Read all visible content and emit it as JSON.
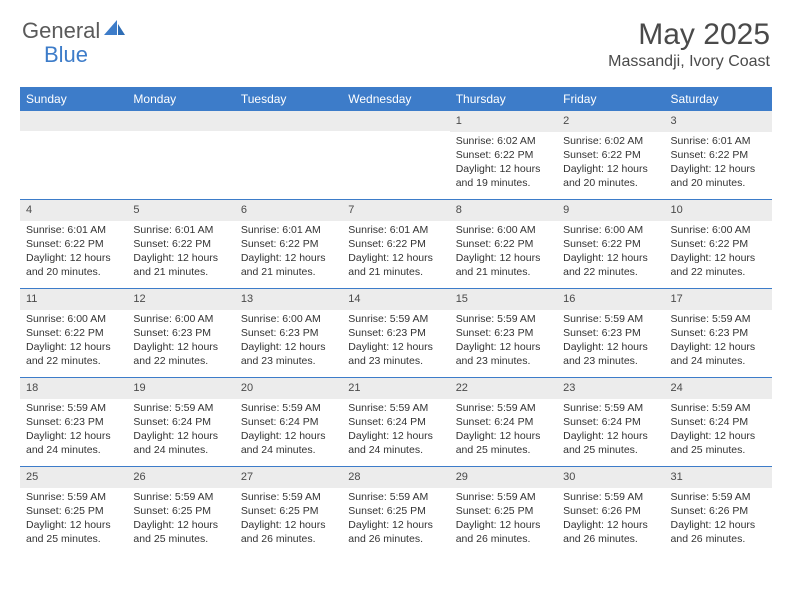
{
  "brand": {
    "part1": "General",
    "part2": "Blue"
  },
  "title": "May 2025",
  "location": "Massandji, Ivory Coast",
  "colors": {
    "accent": "#3d7cc9",
    "header_text": "#ffffff",
    "daynum_bg": "#ececec",
    "text": "#333333",
    "border": "#3d7cc9"
  },
  "dow": [
    "Sunday",
    "Monday",
    "Tuesday",
    "Wednesday",
    "Thursday",
    "Friday",
    "Saturday"
  ],
  "weeks": [
    [
      {
        "n": "",
        "lines": []
      },
      {
        "n": "",
        "lines": []
      },
      {
        "n": "",
        "lines": []
      },
      {
        "n": "",
        "lines": []
      },
      {
        "n": "1",
        "lines": [
          "Sunrise: 6:02 AM",
          "Sunset: 6:22 PM",
          "Daylight: 12 hours and 19 minutes."
        ]
      },
      {
        "n": "2",
        "lines": [
          "Sunrise: 6:02 AM",
          "Sunset: 6:22 PM",
          "Daylight: 12 hours and 20 minutes."
        ]
      },
      {
        "n": "3",
        "lines": [
          "Sunrise: 6:01 AM",
          "Sunset: 6:22 PM",
          "Daylight: 12 hours and 20 minutes."
        ]
      }
    ],
    [
      {
        "n": "4",
        "lines": [
          "Sunrise: 6:01 AM",
          "Sunset: 6:22 PM",
          "Daylight: 12 hours and 20 minutes."
        ]
      },
      {
        "n": "5",
        "lines": [
          "Sunrise: 6:01 AM",
          "Sunset: 6:22 PM",
          "Daylight: 12 hours and 21 minutes."
        ]
      },
      {
        "n": "6",
        "lines": [
          "Sunrise: 6:01 AM",
          "Sunset: 6:22 PM",
          "Daylight: 12 hours and 21 minutes."
        ]
      },
      {
        "n": "7",
        "lines": [
          "Sunrise: 6:01 AM",
          "Sunset: 6:22 PM",
          "Daylight: 12 hours and 21 minutes."
        ]
      },
      {
        "n": "8",
        "lines": [
          "Sunrise: 6:00 AM",
          "Sunset: 6:22 PM",
          "Daylight: 12 hours and 21 minutes."
        ]
      },
      {
        "n": "9",
        "lines": [
          "Sunrise: 6:00 AM",
          "Sunset: 6:22 PM",
          "Daylight: 12 hours and 22 minutes."
        ]
      },
      {
        "n": "10",
        "lines": [
          "Sunrise: 6:00 AM",
          "Sunset: 6:22 PM",
          "Daylight: 12 hours and 22 minutes."
        ]
      }
    ],
    [
      {
        "n": "11",
        "lines": [
          "Sunrise: 6:00 AM",
          "Sunset: 6:22 PM",
          "Daylight: 12 hours and 22 minutes."
        ]
      },
      {
        "n": "12",
        "lines": [
          "Sunrise: 6:00 AM",
          "Sunset: 6:23 PM",
          "Daylight: 12 hours and 22 minutes."
        ]
      },
      {
        "n": "13",
        "lines": [
          "Sunrise: 6:00 AM",
          "Sunset: 6:23 PM",
          "Daylight: 12 hours and 23 minutes."
        ]
      },
      {
        "n": "14",
        "lines": [
          "Sunrise: 5:59 AM",
          "Sunset: 6:23 PM",
          "Daylight: 12 hours and 23 minutes."
        ]
      },
      {
        "n": "15",
        "lines": [
          "Sunrise: 5:59 AM",
          "Sunset: 6:23 PM",
          "Daylight: 12 hours and 23 minutes."
        ]
      },
      {
        "n": "16",
        "lines": [
          "Sunrise: 5:59 AM",
          "Sunset: 6:23 PM",
          "Daylight: 12 hours and 23 minutes."
        ]
      },
      {
        "n": "17",
        "lines": [
          "Sunrise: 5:59 AM",
          "Sunset: 6:23 PM",
          "Daylight: 12 hours and 24 minutes."
        ]
      }
    ],
    [
      {
        "n": "18",
        "lines": [
          "Sunrise: 5:59 AM",
          "Sunset: 6:23 PM",
          "Daylight: 12 hours and 24 minutes."
        ]
      },
      {
        "n": "19",
        "lines": [
          "Sunrise: 5:59 AM",
          "Sunset: 6:24 PM",
          "Daylight: 12 hours and 24 minutes."
        ]
      },
      {
        "n": "20",
        "lines": [
          "Sunrise: 5:59 AM",
          "Sunset: 6:24 PM",
          "Daylight: 12 hours and 24 minutes."
        ]
      },
      {
        "n": "21",
        "lines": [
          "Sunrise: 5:59 AM",
          "Sunset: 6:24 PM",
          "Daylight: 12 hours and 24 minutes."
        ]
      },
      {
        "n": "22",
        "lines": [
          "Sunrise: 5:59 AM",
          "Sunset: 6:24 PM",
          "Daylight: 12 hours and 25 minutes."
        ]
      },
      {
        "n": "23",
        "lines": [
          "Sunrise: 5:59 AM",
          "Sunset: 6:24 PM",
          "Daylight: 12 hours and 25 minutes."
        ]
      },
      {
        "n": "24",
        "lines": [
          "Sunrise: 5:59 AM",
          "Sunset: 6:24 PM",
          "Daylight: 12 hours and 25 minutes."
        ]
      }
    ],
    [
      {
        "n": "25",
        "lines": [
          "Sunrise: 5:59 AM",
          "Sunset: 6:25 PM",
          "Daylight: 12 hours and 25 minutes."
        ]
      },
      {
        "n": "26",
        "lines": [
          "Sunrise: 5:59 AM",
          "Sunset: 6:25 PM",
          "Daylight: 12 hours and 25 minutes."
        ]
      },
      {
        "n": "27",
        "lines": [
          "Sunrise: 5:59 AM",
          "Sunset: 6:25 PM",
          "Daylight: 12 hours and 26 minutes."
        ]
      },
      {
        "n": "28",
        "lines": [
          "Sunrise: 5:59 AM",
          "Sunset: 6:25 PM",
          "Daylight: 12 hours and 26 minutes."
        ]
      },
      {
        "n": "29",
        "lines": [
          "Sunrise: 5:59 AM",
          "Sunset: 6:25 PM",
          "Daylight: 12 hours and 26 minutes."
        ]
      },
      {
        "n": "30",
        "lines": [
          "Sunrise: 5:59 AM",
          "Sunset: 6:26 PM",
          "Daylight: 12 hours and 26 minutes."
        ]
      },
      {
        "n": "31",
        "lines": [
          "Sunrise: 5:59 AM",
          "Sunset: 6:26 PM",
          "Daylight: 12 hours and 26 minutes."
        ]
      }
    ]
  ]
}
